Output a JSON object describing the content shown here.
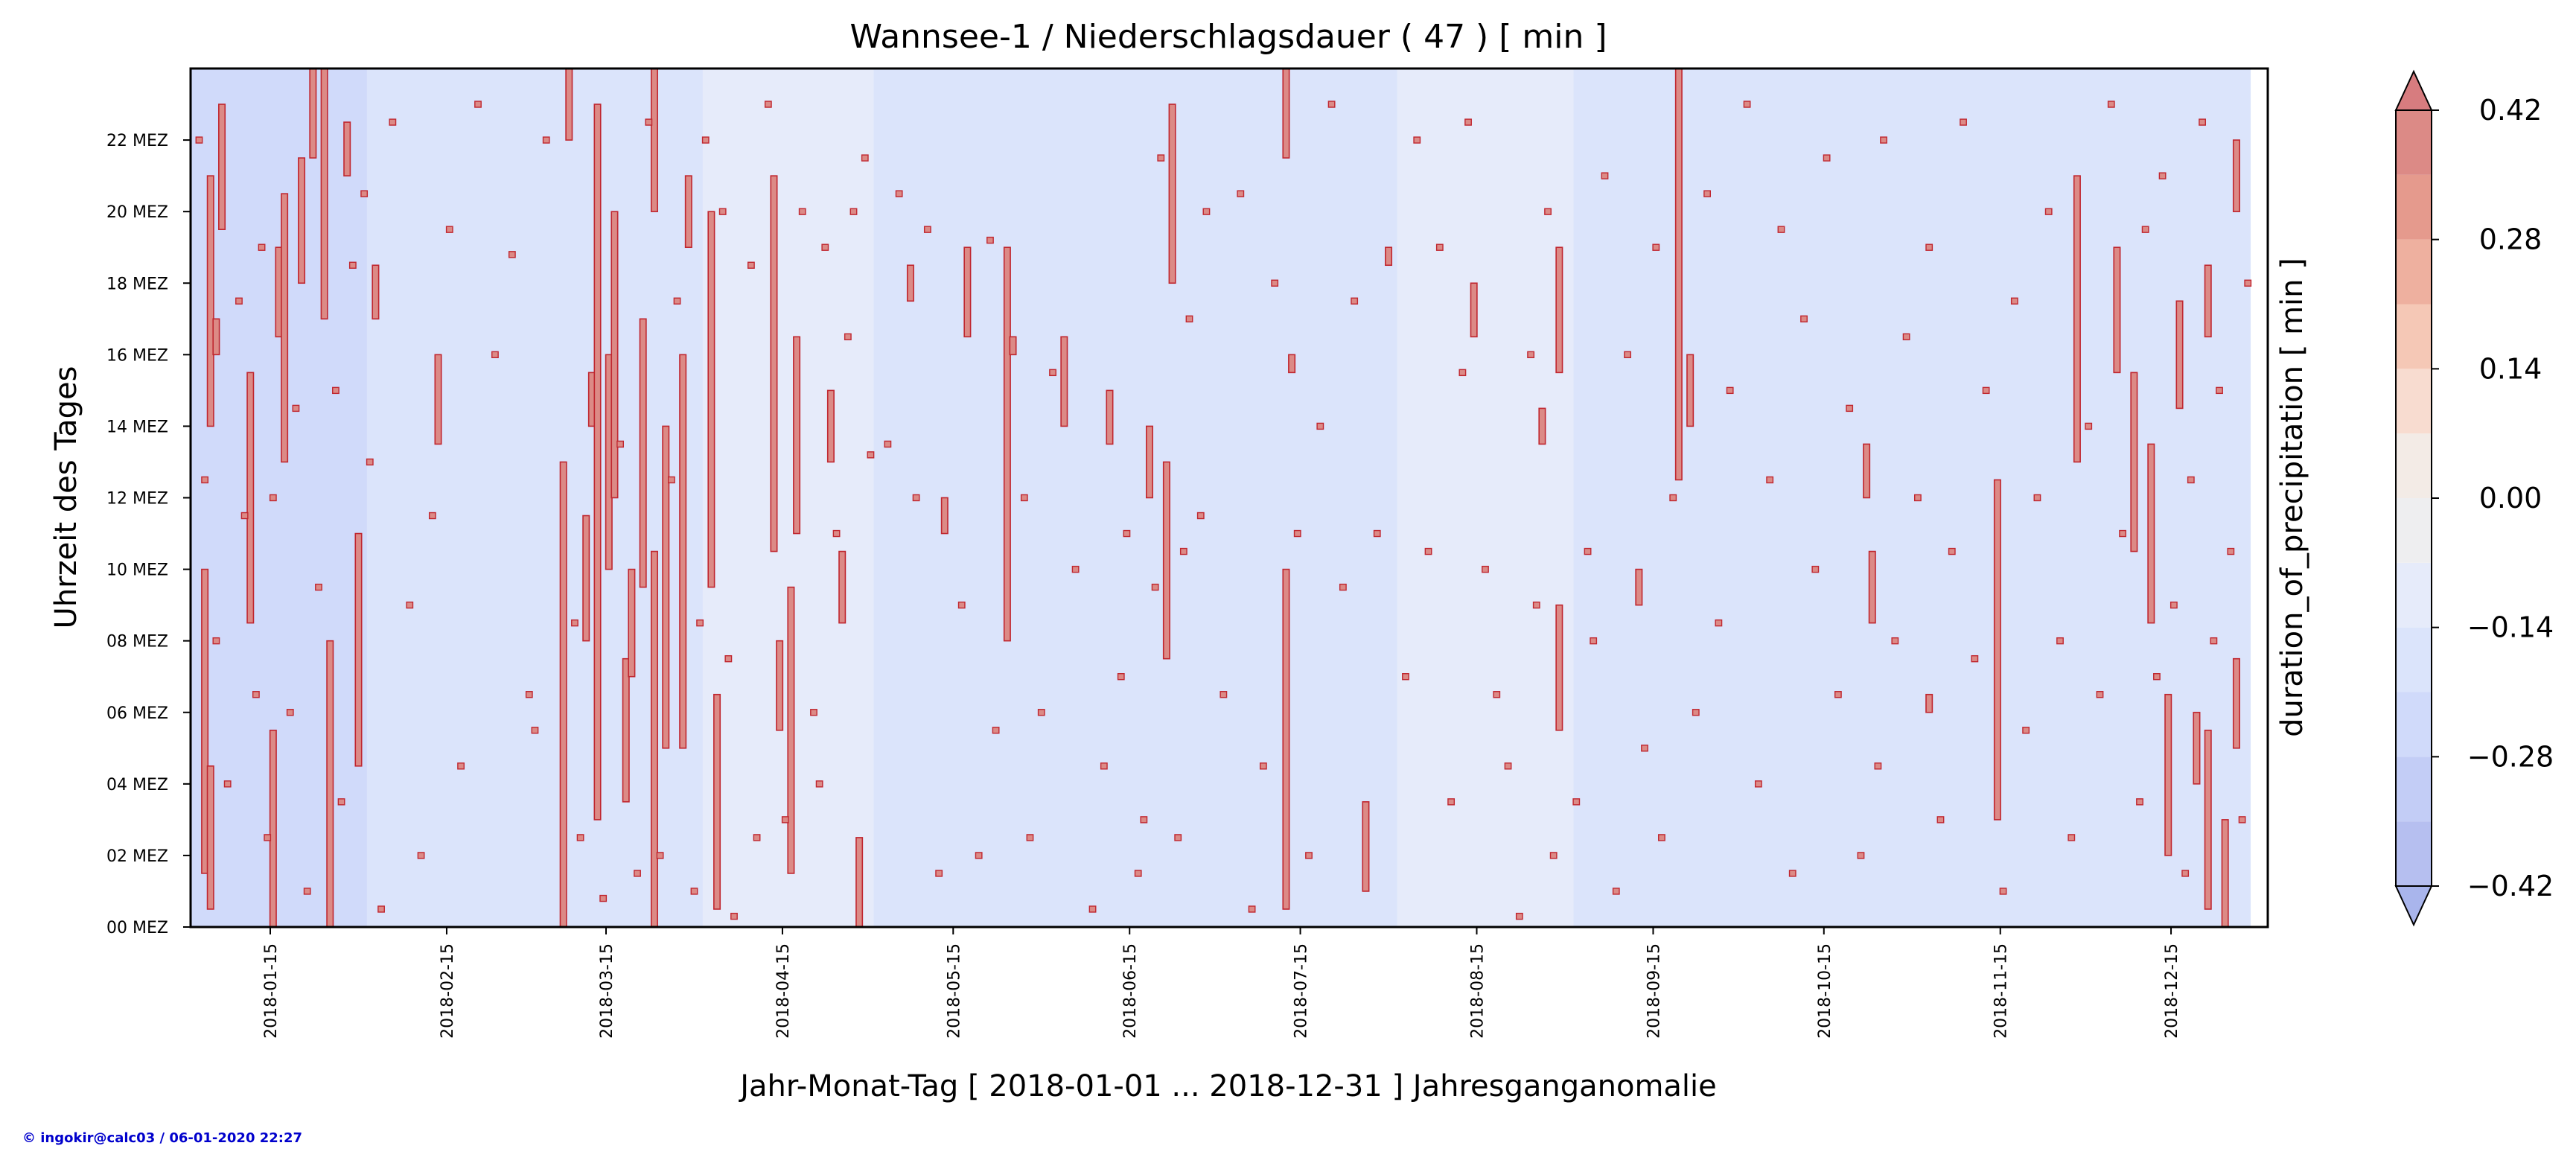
{
  "chart_data": {
    "type": "heatmap",
    "title": "Wannsee-1 / Niederschlagsdauer ( 47 ) [ min ]",
    "xlabel": "Jahr-Monat-Tag [ 2018-01-01 ... 2018-12-31 ] Jahresganganomalie",
    "ylabel": "Uhrzeit des Tages",
    "x_range": [
      "2018-01-01",
      "2018-12-31"
    ],
    "y_range": [
      0,
      24
    ],
    "x_tick_labels": [
      "2018-01-15",
      "2018-02-15",
      "2018-03-15",
      "2018-04-15",
      "2018-05-15",
      "2018-06-15",
      "2018-07-15",
      "2018-08-15",
      "2018-09-15",
      "2018-10-15",
      "2018-11-15",
      "2018-12-15"
    ],
    "y_tick_labels": [
      "00 MEZ",
      "02 MEZ",
      "04 MEZ",
      "06 MEZ",
      "08 MEZ",
      "10 MEZ",
      "12 MEZ",
      "14 MEZ",
      "16 MEZ",
      "18 MEZ",
      "20 MEZ",
      "22 MEZ"
    ],
    "y_tick_hours": [
      0,
      2,
      4,
      6,
      8,
      10,
      12,
      14,
      16,
      18,
      20,
      22
    ],
    "colorbar": {
      "label": "duration_of_precipitation [ min ]",
      "range": [
        -0.42,
        0.42
      ],
      "extend": "both",
      "tick_labels": [
        "−0.42",
        "−0.28",
        "−0.14",
        "0.00",
        "0.14",
        "0.28",
        "0.42"
      ],
      "tick_values": [
        -0.42,
        -0.28,
        -0.14,
        0.0,
        0.14,
        0.28,
        0.42
      ],
      "levels": [
        -0.42,
        -0.35,
        -0.28,
        -0.21,
        -0.14,
        -0.07,
        0.0,
        0.07,
        0.14,
        0.21,
        0.28,
        0.35,
        0.42
      ],
      "colors": [
        "#b6bff0",
        "#c3cdf6",
        "#d0dafa",
        "#dbe4fb",
        "#e6ebfa",
        "#eeeef0",
        "#f3ebe6",
        "#f8dcd0",
        "#f5c8b6",
        "#eeb09f",
        "#e59a8d",
        "#dc8a86"
      ],
      "under_color": "#a9b5ec",
      "over_color": "#d77c7f"
    },
    "background_bands": [
      {
        "start": "2018-01-01",
        "end": "2018-01-31",
        "value": -0.21
      },
      {
        "start": "2018-02-01",
        "end": "2018-03-31",
        "value": -0.14
      },
      {
        "start": "2018-04-01",
        "end": "2018-04-30",
        "value": -0.07
      },
      {
        "start": "2018-05-01",
        "end": "2018-07-31",
        "value": -0.14
      },
      {
        "start": "2018-08-01",
        "end": "2018-08-31",
        "value": -0.07
      },
      {
        "start": "2018-09-01",
        "end": "2018-12-28",
        "value": -0.14
      }
    ],
    "precip_value": 0.42,
    "precip_segments": [
      [
        "2018-01-03",
        1.5,
        10.0
      ],
      [
        "2018-01-04",
        14.0,
        21.0
      ],
      [
        "2018-01-04",
        0.5,
        4.5
      ],
      [
        "2018-01-05",
        16.0,
        17.0
      ],
      [
        "2018-01-06",
        19.5,
        23.0
      ],
      [
        "2018-01-11",
        8.5,
        15.5
      ],
      [
        "2018-01-15",
        0.0,
        5.5
      ],
      [
        "2018-01-16",
        16.5,
        19.0
      ],
      [
        "2018-01-17",
        13.0,
        20.5
      ],
      [
        "2018-01-20",
        18.0,
        21.5
      ],
      [
        "2018-01-22",
        21.5,
        24.0
      ],
      [
        "2018-01-24",
        17.0,
        24.0
      ],
      [
        "2018-01-25",
        0.0,
        8.0
      ],
      [
        "2018-01-28",
        21.0,
        22.5
      ],
      [
        "2018-01-30",
        4.5,
        11.0
      ],
      [
        "2018-02-02",
        17.0,
        18.5
      ],
      [
        "2018-02-13",
        13.5,
        16.0
      ],
      [
        "2018-03-07",
        0.0,
        13.0
      ],
      [
        "2018-03-08",
        22.0,
        24.0
      ],
      [
        "2018-03-11",
        8.0,
        11.5
      ],
      [
        "2018-03-12",
        14.0,
        15.5
      ],
      [
        "2018-03-13",
        3.0,
        23.0
      ],
      [
        "2018-03-15",
        10.0,
        16.0
      ],
      [
        "2018-03-16",
        12.0,
        20.0
      ],
      [
        "2018-03-18",
        3.5,
        7.5
      ],
      [
        "2018-03-19",
        7.0,
        10.0
      ],
      [
        "2018-03-21",
        9.5,
        17.0
      ],
      [
        "2018-03-23",
        0.0,
        10.5
      ],
      [
        "2018-03-23",
        20.0,
        24.0
      ],
      [
        "2018-03-25",
        5.0,
        14.0
      ],
      [
        "2018-03-28",
        5.0,
        16.0
      ],
      [
        "2018-03-29",
        19.0,
        21.0
      ],
      [
        "2018-04-02",
        9.5,
        20.0
      ],
      [
        "2018-04-03",
        0.5,
        6.5
      ],
      [
        "2018-04-13",
        10.5,
        21.0
      ],
      [
        "2018-04-14",
        5.5,
        8.0
      ],
      [
        "2018-04-16",
        1.5,
        9.5
      ],
      [
        "2018-04-17",
        11.0,
        16.5
      ],
      [
        "2018-04-23",
        13.0,
        15.0
      ],
      [
        "2018-04-25",
        8.5,
        10.5
      ],
      [
        "2018-04-28",
        0.0,
        2.5
      ],
      [
        "2018-05-07",
        17.5,
        18.5
      ],
      [
        "2018-05-13",
        11.0,
        12.0
      ],
      [
        "2018-05-17",
        16.5,
        19.0
      ],
      [
        "2018-05-24",
        8.0,
        19.0
      ],
      [
        "2018-05-25",
        16.0,
        16.5
      ],
      [
        "2018-06-03",
        14.0,
        16.5
      ],
      [
        "2018-06-11",
        13.5,
        15.0
      ],
      [
        "2018-06-18",
        12.0,
        14.0
      ],
      [
        "2018-06-21",
        7.5,
        13.0
      ],
      [
        "2018-06-22",
        18.0,
        23.0
      ],
      [
        "2018-07-12",
        0.5,
        10.0
      ],
      [
        "2018-07-12",
        21.5,
        24.0
      ],
      [
        "2018-07-13",
        15.5,
        16.0
      ],
      [
        "2018-07-26",
        1.0,
        3.5
      ],
      [
        "2018-07-30",
        18.5,
        19.0
      ],
      [
        "2018-08-14",
        16.5,
        18.0
      ],
      [
        "2018-08-26",
        13.5,
        14.5
      ],
      [
        "2018-08-29",
        15.5,
        19.0
      ],
      [
        "2018-08-29",
        5.5,
        9.0
      ],
      [
        "2018-09-12",
        9.0,
        10.0
      ],
      [
        "2018-09-19",
        12.5,
        24.0
      ],
      [
        "2018-09-21",
        14.0,
        16.0
      ],
      [
        "2018-10-22",
        12.0,
        13.5
      ],
      [
        "2018-10-23",
        8.5,
        10.5
      ],
      [
        "2018-11-02",
        6.0,
        6.5
      ],
      [
        "2018-11-14",
        3.0,
        12.5
      ],
      [
        "2018-11-28",
        13.0,
        21.0
      ],
      [
        "2018-12-05",
        15.5,
        19.0
      ],
      [
        "2018-12-08",
        10.5,
        15.5
      ],
      [
        "2018-12-11",
        8.5,
        13.5
      ],
      [
        "2018-12-14",
        2.0,
        6.5
      ],
      [
        "2018-12-16",
        14.5,
        17.5
      ],
      [
        "2018-12-19",
        4.0,
        6.0
      ],
      [
        "2018-12-21",
        0.5,
        5.5
      ],
      [
        "2018-12-21",
        16.5,
        18.5
      ],
      [
        "2018-12-24",
        0.0,
        3.0
      ],
      [
        "2018-12-26",
        5.0,
        7.5
      ],
      [
        "2018-12-26",
        20.0,
        22.0
      ]
    ],
    "precip_spots": [
      [
        "2018-01-02",
        22.0
      ],
      [
        "2018-01-03",
        12.5
      ],
      [
        "2018-01-05",
        8.0
      ],
      [
        "2018-01-07",
        4.0
      ],
      [
        "2018-01-09",
        17.5
      ],
      [
        "2018-01-10",
        11.5
      ],
      [
        "2018-01-12",
        6.5
      ],
      [
        "2018-01-13",
        19.0
      ],
      [
        "2018-01-14",
        2.5
      ],
      [
        "2018-01-15",
        12.0
      ],
      [
        "2018-01-18",
        6.0
      ],
      [
        "2018-01-19",
        14.5
      ],
      [
        "2018-01-21",
        1.0
      ],
      [
        "2018-01-23",
        9.5
      ],
      [
        "2018-01-26",
        15.0
      ],
      [
        "2018-01-27",
        3.5
      ],
      [
        "2018-01-29",
        18.5
      ],
      [
        "2018-01-31",
        20.5
      ],
      [
        "2018-02-01",
        13.0
      ],
      [
        "2018-02-03",
        0.5
      ],
      [
        "2018-02-05",
        22.5
      ],
      [
        "2018-02-08",
        9.0
      ],
      [
        "2018-02-10",
        2.0
      ],
      [
        "2018-02-12",
        11.5
      ],
      [
        "2018-02-15",
        19.5
      ],
      [
        "2018-02-17",
        4.5
      ],
      [
        "2018-02-20",
        23.0
      ],
      [
        "2018-02-23",
        16.0
      ],
      [
        "2018-02-26",
        18.8
      ],
      [
        "2018-03-01",
        6.5
      ],
      [
        "2018-03-02",
        5.5
      ],
      [
        "2018-03-04",
        22.0
      ],
      [
        "2018-03-09",
        8.5
      ],
      [
        "2018-03-10",
        2.5
      ],
      [
        "2018-03-14",
        0.8
      ],
      [
        "2018-03-17",
        13.5
      ],
      [
        "2018-03-20",
        1.5
      ],
      [
        "2018-03-22",
        22.5
      ],
      [
        "2018-03-24",
        2.0
      ],
      [
        "2018-03-26",
        12.5
      ],
      [
        "2018-03-27",
        17.5
      ],
      [
        "2018-03-30",
        1.0
      ],
      [
        "2018-03-31",
        8.5
      ],
      [
        "2018-04-01",
        22.0
      ],
      [
        "2018-04-04",
        20.0
      ],
      [
        "2018-04-05",
        7.5
      ],
      [
        "2018-04-06",
        0.3
      ],
      [
        "2018-04-09",
        18.5
      ],
      [
        "2018-04-10",
        2.5
      ],
      [
        "2018-04-12",
        23.0
      ],
      [
        "2018-04-15",
        3.0
      ],
      [
        "2018-04-18",
        20.0
      ],
      [
        "2018-04-20",
        6.0
      ],
      [
        "2018-04-21",
        4.0
      ],
      [
        "2018-04-22",
        19.0
      ],
      [
        "2018-04-24",
        11.0
      ],
      [
        "2018-04-26",
        16.5
      ],
      [
        "2018-04-27",
        20.0
      ],
      [
        "2018-04-29",
        21.5
      ],
      [
        "2018-04-30",
        13.2
      ],
      [
        "2018-05-03",
        13.5
      ],
      [
        "2018-05-05",
        20.5
      ],
      [
        "2018-05-08",
        12.0
      ],
      [
        "2018-05-10",
        19.5
      ],
      [
        "2018-05-12",
        1.5
      ],
      [
        "2018-05-16",
        9.0
      ],
      [
        "2018-05-19",
        2.0
      ],
      [
        "2018-05-21",
        19.2
      ],
      [
        "2018-05-22",
        5.5
      ],
      [
        "2018-05-27",
        12.0
      ],
      [
        "2018-05-28",
        2.5
      ],
      [
        "2018-05-30",
        6.0
      ],
      [
        "2018-06-01",
        15.5
      ],
      [
        "2018-06-05",
        10.0
      ],
      [
        "2018-06-08",
        0.5
      ],
      [
        "2018-06-10",
        4.5
      ],
      [
        "2018-06-13",
        7.0
      ],
      [
        "2018-06-14",
        11.0
      ],
      [
        "2018-06-16",
        1.5
      ],
      [
        "2018-06-17",
        3.0
      ],
      [
        "2018-06-19",
        9.5
      ],
      [
        "2018-06-20",
        21.5
      ],
      [
        "2018-06-23",
        2.5
      ],
      [
        "2018-06-24",
        10.5
      ],
      [
        "2018-06-25",
        17.0
      ],
      [
        "2018-06-27",
        11.5
      ],
      [
        "2018-06-28",
        20.0
      ],
      [
        "2018-07-01",
        6.5
      ],
      [
        "2018-07-04",
        20.5
      ],
      [
        "2018-07-06",
        0.5
      ],
      [
        "2018-07-08",
        4.5
      ],
      [
        "2018-07-10",
        18.0
      ],
      [
        "2018-07-14",
        11.0
      ],
      [
        "2018-07-16",
        2.0
      ],
      [
        "2018-07-18",
        14.0
      ],
      [
        "2018-07-20",
        23.0
      ],
      [
        "2018-07-22",
        9.5
      ],
      [
        "2018-07-24",
        17.5
      ],
      [
        "2018-07-28",
        11.0
      ],
      [
        "2018-08-02",
        7.0
      ],
      [
        "2018-08-04",
        22.0
      ],
      [
        "2018-08-06",
        10.5
      ],
      [
        "2018-08-08",
        19.0
      ],
      [
        "2018-08-10",
        3.5
      ],
      [
        "2018-08-12",
        15.5
      ],
      [
        "2018-08-13",
        22.5
      ],
      [
        "2018-08-16",
        10.0
      ],
      [
        "2018-08-18",
        6.5
      ],
      [
        "2018-08-20",
        4.5
      ],
      [
        "2018-08-22",
        0.3
      ],
      [
        "2018-08-24",
        16.0
      ],
      [
        "2018-08-25",
        9.0
      ],
      [
        "2018-08-27",
        20.0
      ],
      [
        "2018-08-28",
        2.0
      ],
      [
        "2018-09-01",
        3.5
      ],
      [
        "2018-09-03",
        10.5
      ],
      [
        "2018-09-04",
        8.0
      ],
      [
        "2018-09-06",
        21.0
      ],
      [
        "2018-09-08",
        1.0
      ],
      [
        "2018-09-10",
        16.0
      ],
      [
        "2018-09-13",
        5.0
      ],
      [
        "2018-09-15",
        19.0
      ],
      [
        "2018-09-16",
        2.5
      ],
      [
        "2018-09-18",
        12.0
      ],
      [
        "2018-09-22",
        6.0
      ],
      [
        "2018-09-24",
        20.5
      ],
      [
        "2018-09-26",
        8.5
      ],
      [
        "2018-09-28",
        15.0
      ],
      [
        "2018-10-01",
        23.0
      ],
      [
        "2018-10-03",
        4.0
      ],
      [
        "2018-10-05",
        12.5
      ],
      [
        "2018-10-07",
        19.5
      ],
      [
        "2018-10-09",
        1.5
      ],
      [
        "2018-10-11",
        17.0
      ],
      [
        "2018-10-13",
        10.0
      ],
      [
        "2018-10-15",
        21.5
      ],
      [
        "2018-10-17",
        6.5
      ],
      [
        "2018-10-19",
        14.5
      ],
      [
        "2018-10-21",
        2.0
      ],
      [
        "2018-10-24",
        4.5
      ],
      [
        "2018-10-25",
        22.0
      ],
      [
        "2018-10-27",
        8.0
      ],
      [
        "2018-10-29",
        16.5
      ],
      [
        "2018-10-31",
        12.0
      ],
      [
        "2018-11-02",
        19.0
      ],
      [
        "2018-11-04",
        3.0
      ],
      [
        "2018-11-06",
        10.5
      ],
      [
        "2018-11-08",
        22.5
      ],
      [
        "2018-11-10",
        7.5
      ],
      [
        "2018-11-12",
        15.0
      ],
      [
        "2018-11-15",
        1.0
      ],
      [
        "2018-11-17",
        17.5
      ],
      [
        "2018-11-19",
        5.5
      ],
      [
        "2018-11-21",
        12.0
      ],
      [
        "2018-11-23",
        20.0
      ],
      [
        "2018-11-25",
        8.0
      ],
      [
        "2018-11-27",
        2.5
      ],
      [
        "2018-11-30",
        14.0
      ],
      [
        "2018-12-02",
        6.5
      ],
      [
        "2018-12-04",
        23.0
      ],
      [
        "2018-12-06",
        11.0
      ],
      [
        "2018-12-09",
        3.5
      ],
      [
        "2018-12-10",
        19.5
      ],
      [
        "2018-12-12",
        7.0
      ],
      [
        "2018-12-13",
        21.0
      ],
      [
        "2018-12-15",
        9.0
      ],
      [
        "2018-12-17",
        1.5
      ],
      [
        "2018-12-18",
        12.5
      ],
      [
        "2018-12-20",
        22.5
      ],
      [
        "2018-12-22",
        8.0
      ],
      [
        "2018-12-23",
        15.0
      ],
      [
        "2018-12-25",
        10.5
      ],
      [
        "2018-12-27",
        3.0
      ],
      [
        "2018-12-28",
        18.0
      ]
    ],
    "grid": false
  },
  "footer": {
    "credit": "© ingokir@calc03 / 06-01-2020 22:27"
  }
}
